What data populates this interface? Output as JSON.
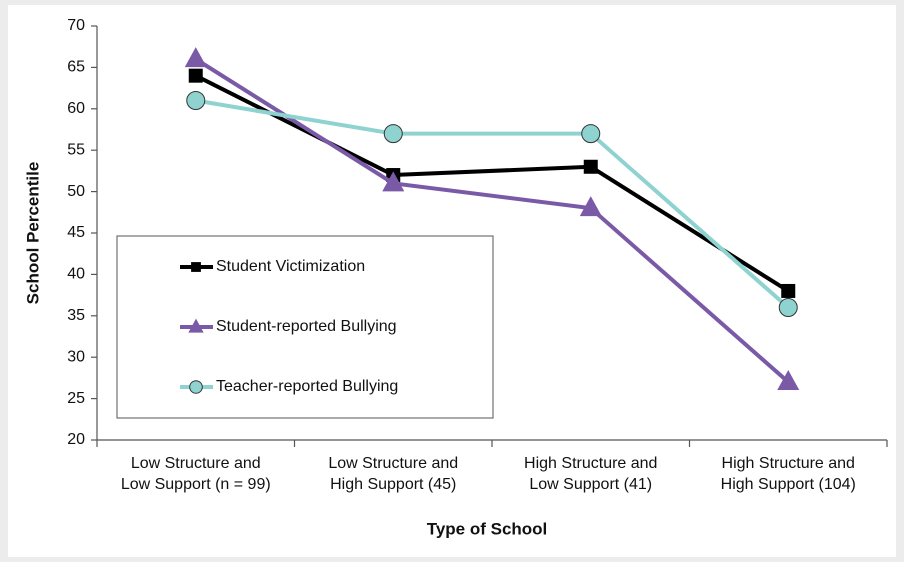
{
  "chart_data": {
    "type": "line",
    "xlabel": "Type of School",
    "ylabel": "School Percentile",
    "categories": [
      [
        "Low Structure and",
        "Low Support (n = 99)"
      ],
      [
        "Low Structure and",
        "High Support (45)"
      ],
      [
        "High Structure and",
        "Low Support (41)"
      ],
      [
        "High Structure and",
        "High Support (104)"
      ]
    ],
    "series": [
      {
        "name": "Student Victimization",
        "color": "#000000",
        "marker": "square",
        "values": [
          64,
          52,
          53,
          38
        ]
      },
      {
        "name": "Student-reported Bullying",
        "color": "#7a5aa6",
        "marker": "triangle",
        "values": [
          66,
          51,
          48,
          27
        ]
      },
      {
        "name": "Teacher-reported Bullying",
        "color": "#8fd3d1",
        "marker": "circle",
        "values": [
          61,
          57,
          57,
          36
        ]
      }
    ],
    "ylim": [
      20,
      70
    ],
    "yticks": [
      20,
      25,
      30,
      35,
      40,
      45,
      50,
      55,
      60,
      65,
      70
    ],
    "grid": false,
    "legend": "lower-left"
  }
}
